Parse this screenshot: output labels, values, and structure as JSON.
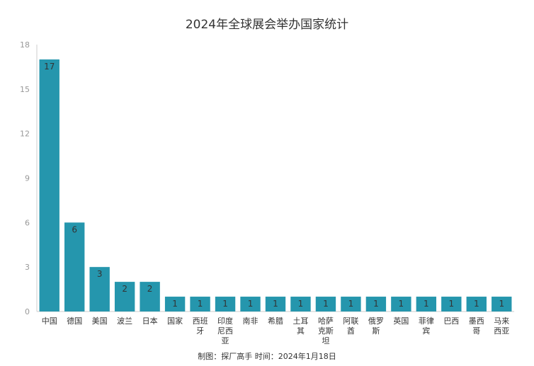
{
  "chart_data": {
    "type": "bar",
    "title": "2024年全球展会举办国家统计",
    "footer": "制图：探厂高手  时间：2024年1月18日",
    "categories": [
      "中国",
      "德国",
      "美国",
      "波兰",
      "日本",
      "国家",
      "西班牙",
      "印度尼西亚",
      "南非",
      "希腊",
      "土耳其",
      "哈萨克斯坦",
      "阿联酋",
      "俄罗斯",
      "英国",
      "菲律宾",
      "巴西",
      "墨西哥",
      "马来西亚"
    ],
    "category_lines": [
      [
        "中国"
      ],
      [
        "德国"
      ],
      [
        "美国"
      ],
      [
        "波兰"
      ],
      [
        "日本"
      ],
      [
        "国家"
      ],
      [
        "西班",
        "牙"
      ],
      [
        "印度",
        "尼西",
        "亚"
      ],
      [
        "南非"
      ],
      [
        "希腊"
      ],
      [
        "土耳",
        "其"
      ],
      [
        "哈萨",
        "克斯",
        "坦"
      ],
      [
        "阿联",
        "酋"
      ],
      [
        "俄罗",
        "斯"
      ],
      [
        "英国"
      ],
      [
        "菲律",
        "宾"
      ],
      [
        "巴西"
      ],
      [
        "墨西",
        "哥"
      ],
      [
        "马来",
        "西亚"
      ]
    ],
    "values": [
      17,
      6,
      3,
      2,
      2,
      1,
      1,
      1,
      1,
      1,
      1,
      1,
      1,
      1,
      1,
      1,
      1,
      1,
      1
    ],
    "ylim": [
      0,
      18
    ],
    "yticks": [
      0,
      3,
      6,
      9,
      12,
      15,
      18
    ],
    "grid": false,
    "legend": "none",
    "bar_color": "#2596ad",
    "label_color": "#333333"
  }
}
